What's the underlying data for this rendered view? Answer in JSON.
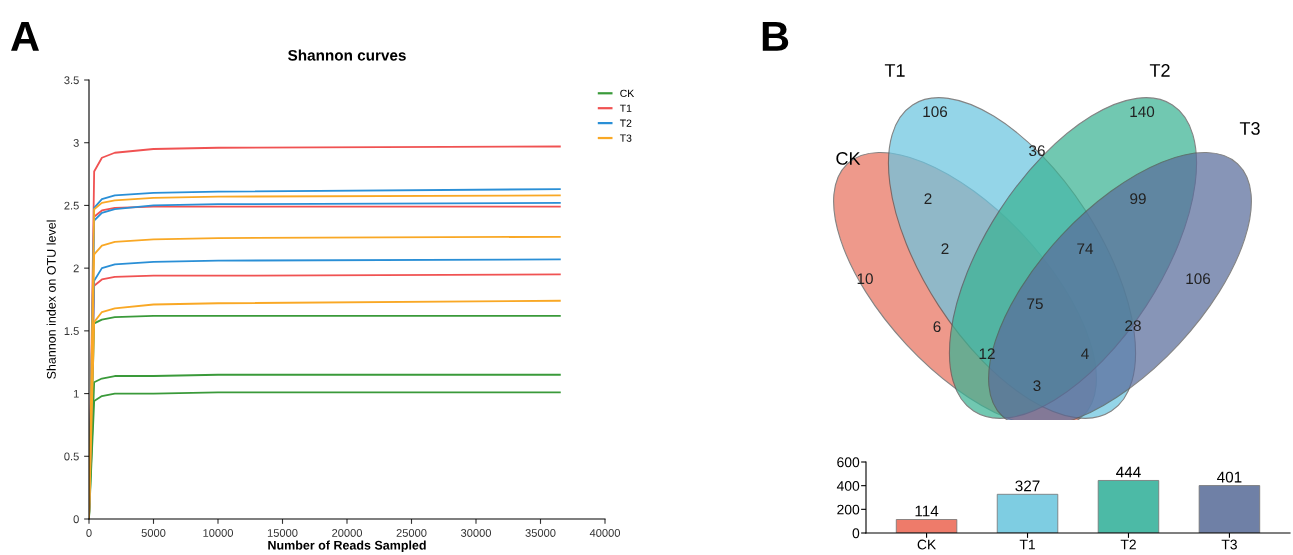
{
  "chart_data": [
    {
      "type": "line",
      "title": "Shannon curves",
      "xlabel": "Number of Reads Sampled",
      "ylabel": "Shannon index on OTU level",
      "annotations": [
        "A"
      ],
      "xlim": [
        0,
        40000
      ],
      "xticks": [
        0,
        5000,
        10000,
        15000,
        20000,
        25000,
        30000,
        35000,
        40000
      ],
      "ylim": [
        0,
        3.5
      ],
      "yticks": [
        0,
        0.5,
        1,
        1.5,
        2,
        2.5,
        3,
        3.5
      ],
      "grid": false,
      "legend": "top right",
      "marker": "none",
      "line_style": "solid",
      "x": [
        0,
        400,
        1000,
        2000,
        5000,
        10000,
        36500
      ],
      "series": [
        {
          "name": "CK",
          "color": "#3a9a3a",
          "values": [
            0,
            1.56,
            1.59,
            1.61,
            1.62,
            1.62,
            1.62
          ]
        },
        {
          "color": "#3a9a3a",
          "values": [
            0,
            1.09,
            1.12,
            1.14,
            1.14,
            1.15,
            1.15
          ]
        },
        {
          "color": "#3a9a3a",
          "values": [
            0,
            0.94,
            0.98,
            1.0,
            1.0,
            1.01,
            1.01
          ]
        },
        {
          "name": "T1",
          "color": "#f05252",
          "values": [
            0,
            2.77,
            2.88,
            2.92,
            2.95,
            2.96,
            2.97
          ]
        },
        {
          "color": "#f05252",
          "values": [
            null,
            2.41,
            2.46,
            2.48,
            2.49,
            2.49,
            2.49
          ]
        },
        {
          "color": "#f05252",
          "values": [
            0,
            1.86,
            1.91,
            1.93,
            1.94,
            1.94,
            1.95
          ]
        },
        {
          "name": "T2",
          "color": "#2a8fd6",
          "values": [
            0,
            2.48,
            2.55,
            2.58,
            2.6,
            2.61,
            2.63
          ]
        },
        {
          "color": "#2a8fd6",
          "values": [
            0,
            2.38,
            2.44,
            2.47,
            2.5,
            2.51,
            2.52
          ]
        },
        {
          "color": "#2a8fd6",
          "values": [
            0,
            1.9,
            2.0,
            2.03,
            2.05,
            2.06,
            2.07
          ]
        },
        {
          "name": "T3",
          "color": "#f9a825",
          "values": [
            0,
            2.47,
            2.52,
            2.54,
            2.56,
            2.57,
            2.58
          ]
        },
        {
          "color": "#f9a825",
          "values": [
            0,
            2.11,
            2.18,
            2.21,
            2.23,
            2.24,
            2.25
          ]
        },
        {
          "color": "#f9a825",
          "values": [
            0,
            1.57,
            1.65,
            1.68,
            1.71,
            1.72,
            1.74
          ]
        }
      ]
    },
    {
      "type": "other",
      "categories": [
        "CK",
        "T1",
        "T2",
        "T3"
      ],
      "colors": [
        "#e8735f",
        "#6cc5e0",
        "#3bb394",
        "#5a6d9c"
      ],
      "annotations": [
        "B",
        "10",
        "106",
        "140",
        "106",
        "2",
        "36",
        "99",
        "2",
        "74",
        "75",
        "6",
        "28",
        "12",
        "4",
        "3"
      ]
    },
    {
      "type": "bar",
      "categories": [
        "CK",
        "T1",
        "T2",
        "T3"
      ],
      "values": [
        114,
        327,
        444,
        401
      ],
      "colors": [
        "#ee7b6a",
        "#7ecde2",
        "#4cbaa6",
        "#6f80a6"
      ],
      "ylim": [
        0,
        600
      ],
      "yticks": [
        0,
        200,
        400,
        600
      ],
      "data_labels": true
    }
  ]
}
